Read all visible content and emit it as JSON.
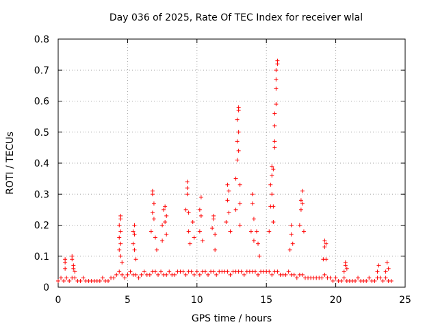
{
  "chart_data": {
    "type": "scatter",
    "title": "Day 036 of 2025, Rate Of TEC Index for receiver wlal",
    "xlabel": "GPS time / hours",
    "ylabel": "ROTI / TECUs",
    "xlim": [
      0,
      25
    ],
    "ylim": [
      0,
      0.8
    ],
    "xticks": [
      "0",
      "5",
      "10",
      "15",
      "20",
      "25"
    ],
    "yticks": [
      "0",
      "0.1",
      "0.2",
      "0.3",
      "0.4",
      "0.5",
      "0.6",
      "0.7",
      "0.8"
    ],
    "grid": true,
    "marker": "plus",
    "color": "#ff0000",
    "series": [
      {
        "x": [
          0.0,
          0.2,
          0.4,
          0.6,
          0.8,
          1.0,
          1.2,
          1.4,
          1.6,
          1.8,
          2.0,
          2.2,
          2.4,
          2.6,
          2.8,
          3.0,
          3.2,
          3.4,
          3.6,
          3.8,
          4.0,
          4.2,
          4.4,
          4.6,
          4.8,
          5.0,
          5.2,
          5.4,
          5.6,
          5.8,
          6.0,
          6.2,
          6.4,
          6.6,
          6.8,
          7.0,
          7.2,
          7.4,
          7.6,
          7.8,
          8.0,
          8.2,
          8.4,
          8.6,
          8.8,
          9.0,
          9.2,
          9.4,
          9.6,
          9.8,
          10.0,
          10.2,
          10.4,
          10.6,
          10.8,
          11.0,
          11.2,
          11.4,
          11.6,
          11.8,
          12.0,
          12.2,
          12.4,
          12.6,
          12.8,
          13.0,
          13.2,
          13.4,
          13.6,
          13.8,
          14.0,
          14.2,
          14.4,
          14.6,
          14.8,
          15.0,
          15.2,
          15.4,
          15.6,
          15.8,
          16.0,
          16.2,
          16.4,
          16.6,
          16.8,
          17.0,
          17.2,
          17.4,
          17.6,
          17.8,
          18.0,
          18.2,
          18.4,
          18.6,
          18.8,
          19.0,
          19.2,
          19.4,
          19.6,
          19.8,
          20.0,
          20.2,
          20.4,
          20.6,
          20.8,
          21.0,
          21.2,
          21.4,
          21.6,
          21.8,
          22.0,
          22.2,
          22.4,
          22.6,
          22.8,
          23.0,
          23.2,
          23.4,
          23.6,
          23.8,
          24.0,
          0.5,
          0.5,
          0.5,
          1.0,
          1.0,
          1.1,
          1.1,
          1.2,
          4.4,
          4.4,
          4.4,
          4.5,
          4.5,
          4.5,
          4.5,
          4.5,
          4.6,
          5.4,
          5.4,
          5.5,
          5.5,
          5.5,
          5.6,
          6.7,
          6.8,
          6.8,
          6.8,
          6.9,
          6.9,
          7.0,
          7.1,
          7.5,
          7.5,
          7.6,
          7.7,
          7.7,
          7.8,
          7.8,
          9.2,
          9.3,
          9.3,
          9.3,
          9.4,
          9.4,
          9.5,
          9.7,
          9.8,
          10.2,
          10.2,
          10.3,
          10.3,
          10.4,
          11.1,
          11.2,
          11.2,
          11.3,
          11.3,
          12.1,
          12.2,
          12.2,
          12.3,
          12.3,
          12.4,
          12.8,
          12.8,
          12.9,
          12.9,
          12.9,
          13.0,
          13.0,
          13.0,
          13.0,
          13.1,
          13.1,
          13.1,
          13.9,
          14.0,
          14.0,
          14.1,
          14.1,
          14.3,
          14.4,
          14.5,
          15.2,
          15.3,
          15.3,
          15.4,
          15.4,
          15.4,
          15.5,
          15.5,
          15.5,
          15.6,
          15.6,
          15.6,
          15.6,
          15.7,
          15.7,
          15.7,
          15.7,
          15.8,
          15.8,
          16.7,
          16.8,
          16.8,
          16.9,
          17.4,
          17.5,
          17.5,
          17.6,
          17.6,
          17.7,
          19.1,
          19.2,
          19.2,
          19.3,
          19.3,
          20.6,
          20.7,
          20.7,
          20.8,
          23.0,
          23.1,
          23.6,
          23.7,
          23.8
        ],
        "y": [
          0.02,
          0.03,
          0.02,
          0.03,
          0.02,
          0.03,
          0.03,
          0.02,
          0.02,
          0.03,
          0.02,
          0.02,
          0.02,
          0.02,
          0.02,
          0.02,
          0.03,
          0.02,
          0.02,
          0.03,
          0.03,
          0.04,
          0.05,
          0.04,
          0.03,
          0.04,
          0.05,
          0.04,
          0.04,
          0.03,
          0.04,
          0.05,
          0.04,
          0.04,
          0.05,
          0.05,
          0.04,
          0.05,
          0.04,
          0.04,
          0.05,
          0.04,
          0.04,
          0.05,
          0.05,
          0.05,
          0.04,
          0.05,
          0.05,
          0.04,
          0.05,
          0.04,
          0.05,
          0.05,
          0.04,
          0.05,
          0.05,
          0.04,
          0.05,
          0.05,
          0.05,
          0.05,
          0.04,
          0.05,
          0.05,
          0.05,
          0.05,
          0.04,
          0.05,
          0.05,
          0.05,
          0.05,
          0.04,
          0.05,
          0.05,
          0.05,
          0.05,
          0.04,
          0.05,
          0.05,
          0.04,
          0.04,
          0.04,
          0.05,
          0.04,
          0.04,
          0.03,
          0.04,
          0.04,
          0.03,
          0.03,
          0.03,
          0.03,
          0.03,
          0.03,
          0.03,
          0.04,
          0.03,
          0.03,
          0.02,
          0.03,
          0.02,
          0.02,
          0.03,
          0.02,
          0.02,
          0.02,
          0.02,
          0.03,
          0.02,
          0.02,
          0.02,
          0.03,
          0.02,
          0.02,
          0.03,
          0.03,
          0.02,
          0.03,
          0.02,
          0.02,
          0.06,
          0.08,
          0.09,
          0.1,
          0.09,
          0.07,
          0.06,
          0.05,
          0.12,
          0.16,
          0.2,
          0.23,
          0.22,
          0.18,
          0.14,
          0.1,
          0.08,
          0.14,
          0.18,
          0.2,
          0.17,
          0.12,
          0.09,
          0.18,
          0.24,
          0.3,
          0.31,
          0.27,
          0.22,
          0.16,
          0.12,
          0.15,
          0.2,
          0.25,
          0.26,
          0.21,
          0.23,
          0.17,
          0.25,
          0.3,
          0.34,
          0.32,
          0.24,
          0.18,
          0.14,
          0.21,
          0.16,
          0.18,
          0.25,
          0.29,
          0.23,
          0.15,
          0.19,
          0.23,
          0.22,
          0.17,
          0.12,
          0.21,
          0.28,
          0.33,
          0.31,
          0.24,
          0.18,
          0.25,
          0.35,
          0.41,
          0.47,
          0.54,
          0.58,
          0.57,
          0.5,
          0.44,
          0.33,
          0.27,
          0.2,
          0.18,
          0.27,
          0.3,
          0.22,
          0.15,
          0.18,
          0.14,
          0.1,
          0.18,
          0.26,
          0.33,
          0.36,
          0.39,
          0.3,
          0.38,
          0.26,
          0.21,
          0.45,
          0.47,
          0.52,
          0.56,
          0.59,
          0.64,
          0.67,
          0.7,
          0.72,
          0.73,
          0.12,
          0.17,
          0.2,
          0.14,
          0.2,
          0.25,
          0.28,
          0.31,
          0.27,
          0.18,
          0.09,
          0.13,
          0.15,
          0.14,
          0.09,
          0.05,
          0.07,
          0.08,
          0.06,
          0.05,
          0.07,
          0.05,
          0.08,
          0.06
        ]
      }
    ]
  }
}
